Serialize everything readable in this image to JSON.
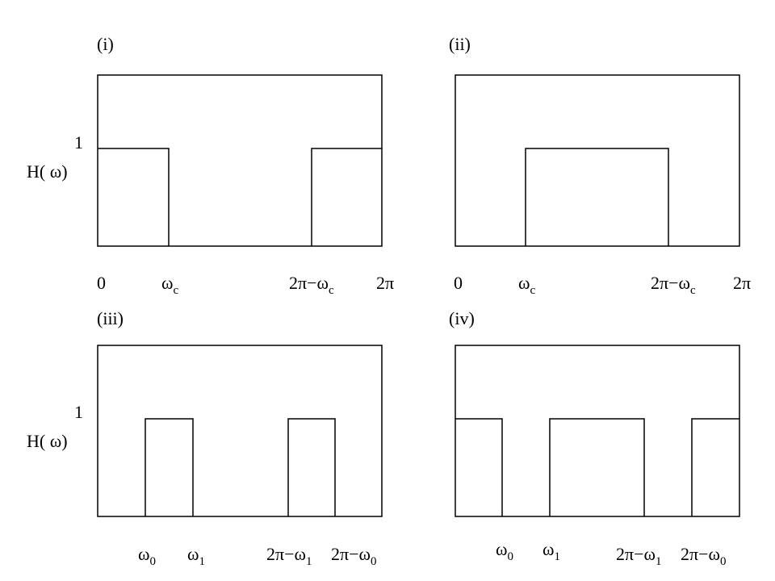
{
  "figure": {
    "y_axis": {
      "label": "H( ω)",
      "one_tick": "1"
    },
    "panels": [
      {
        "id": "i",
        "label": "(i)",
        "filter": "lowpass",
        "x_ticks": [
          {
            "main": "0",
            "sub": ""
          },
          {
            "main": "ω",
            "sub": "c"
          },
          {
            "main": "2π−ω",
            "sub": "c"
          },
          {
            "main": "2π",
            "sub": ""
          }
        ]
      },
      {
        "id": "ii",
        "label": "(ii)",
        "filter": "highpass",
        "x_ticks": [
          {
            "main": "0",
            "sub": ""
          },
          {
            "main": "ω",
            "sub": "c"
          },
          {
            "main": "2π−ω",
            "sub": "c"
          },
          {
            "main": "2π",
            "sub": ""
          }
        ]
      },
      {
        "id": "iii",
        "label": "(iii)",
        "filter": "bandpass",
        "x_ticks": [
          {
            "main": "ω",
            "sub": "0"
          },
          {
            "main": "ω",
            "sub": "1"
          },
          {
            "main": "2π−ω",
            "sub": "1"
          },
          {
            "main": "2π−ω",
            "sub": "0"
          }
        ]
      },
      {
        "id": "iv",
        "label": "(iv)",
        "filter": "bandstop",
        "x_ticks": [
          {
            "main": "ω",
            "sub": "0"
          },
          {
            "main": "ω",
            "sub": "1"
          },
          {
            "main": "2π−ω",
            "sub": "1"
          },
          {
            "main": "2π−ω",
            "sub": "0"
          }
        ]
      }
    ]
  }
}
